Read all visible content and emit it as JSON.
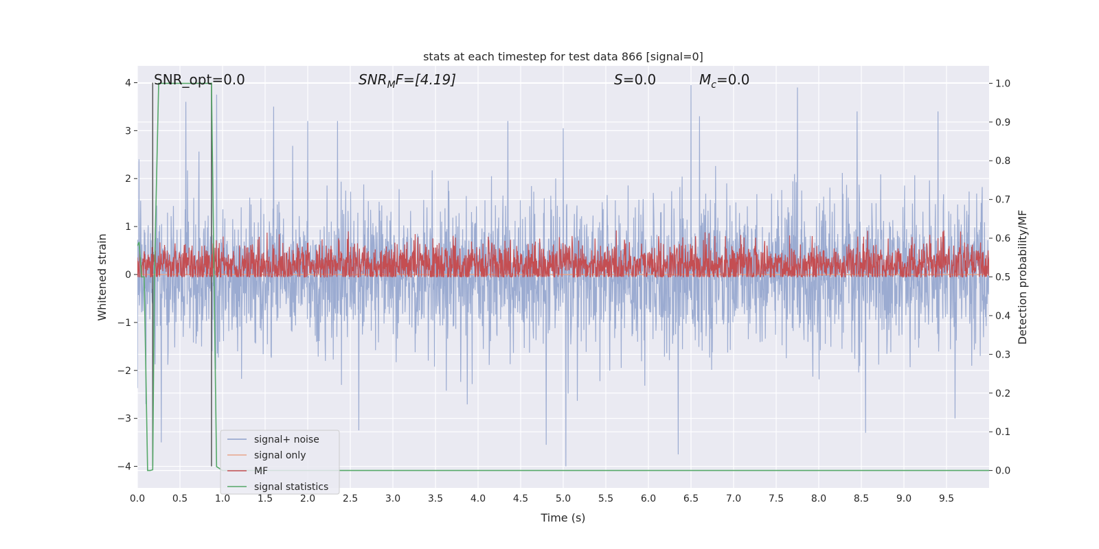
{
  "chart_data": {
    "type": "line",
    "title": "stats at each timestep for test data 866 [signal=0]",
    "xlabel": "Time (s)",
    "ylabel": "Whitened strain",
    "y2label": "Detection probability/MF",
    "xlim": [
      0.0,
      10.0
    ],
    "ylim": [
      -4.45,
      4.35
    ],
    "y2lim": [
      -0.045,
      1.045
    ],
    "xticks": [
      0.0,
      0.5,
      1.0,
      1.5,
      2.0,
      2.5,
      3.0,
      3.5,
      4.0,
      4.5,
      5.0,
      5.5,
      6.0,
      6.5,
      7.0,
      7.5,
      8.0,
      8.5,
      9.0,
      9.5
    ],
    "xtick_labels": [
      "0.0",
      "0.5",
      "1.0",
      "1.5",
      "2.0",
      "2.5",
      "3.0",
      "3.5",
      "4.0",
      "4.5",
      "5.0",
      "5.5",
      "6.0",
      "6.5",
      "7.0",
      "7.5",
      "8.0",
      "8.5",
      "9.0",
      "9.5"
    ],
    "yticks": [
      -4,
      -3,
      -2,
      -1,
      0,
      1,
      2,
      3,
      4
    ],
    "ytick_labels": [
      "−4",
      "−3",
      "−2",
      "−1",
      "0",
      "1",
      "2",
      "3",
      "4"
    ],
    "y2ticks": [
      0.0,
      0.1,
      0.2,
      0.3,
      0.4,
      0.5,
      0.6,
      0.7,
      0.8,
      0.9,
      1.0
    ],
    "y2tick_labels": [
      "0.0",
      "0.1",
      "0.2",
      "0.3",
      "0.4",
      "0.5",
      "0.6",
      "0.7",
      "0.8",
      "0.9",
      "1.0"
    ],
    "grid": true,
    "legend_position": "lower-left",
    "annotations": {
      "snr_opt": "SNR_opt=0.0",
      "snr_mf_base": "SNR",
      "snr_mf_sub": "M",
      "snr_mf_rest": "F=[4.19]",
      "s_italic": "S",
      "s_rest": "=0.0",
      "mc_base": "M",
      "mc_sub": "c",
      "mc_rest": "=0.0"
    },
    "markers_x": [
      0.18,
      0.87
    ],
    "series": [
      {
        "name": "signal+ noise",
        "axis": "left",
        "color": "#8da0cb",
        "kind": "noise",
        "mean": 0.0,
        "std": 0.75,
        "spikes": [
          {
            "x": 0.02,
            "y": 2.4
          },
          {
            "x": 0.57,
            "y": 3.6
          },
          {
            "x": 0.93,
            "y": 3.75
          },
          {
            "x": 1.6,
            "y": 3.5
          },
          {
            "x": 2.0,
            "y": 3.2
          },
          {
            "x": 2.35,
            "y": 3.2
          },
          {
            "x": 4.35,
            "y": 3.2
          },
          {
            "x": 5.0,
            "y": 3.05
          },
          {
            "x": 6.5,
            "y": 3.95
          },
          {
            "x": 6.6,
            "y": 3.3
          },
          {
            "x": 7.75,
            "y": 3.9
          },
          {
            "x": 8.45,
            "y": 3.4
          },
          {
            "x": 9.4,
            "y": 3.4
          },
          {
            "x": 0.28,
            "y": -3.5
          },
          {
            "x": 2.6,
            "y": -3.25
          },
          {
            "x": 4.8,
            "y": -3.55
          },
          {
            "x": 5.03,
            "y": -4.0
          },
          {
            "x": 6.35,
            "y": -3.75
          },
          {
            "x": 8.55,
            "y": -3.3
          },
          {
            "x": 0.1,
            "y": -2.7
          },
          {
            "x": 9.6,
            "y": -3.0
          }
        ]
      },
      {
        "name": "signal only",
        "axis": "left",
        "color": "#e8a58a",
        "kind": "constant",
        "value": 0.0
      },
      {
        "name": "MF",
        "axis": "right",
        "color": "#c44e52",
        "kind": "noise",
        "mean": 0.53,
        "std": 0.03,
        "min": 0.5,
        "max": 0.62
      },
      {
        "name": "signal statistics",
        "axis": "right",
        "color": "#55a868",
        "kind": "line",
        "x": [
          0.0,
          0.02,
          0.05,
          0.08,
          0.12,
          0.15,
          0.18,
          0.2,
          0.25,
          0.87,
          0.9,
          0.93,
          1.0,
          10.0
        ],
        "y": [
          0.58,
          0.59,
          0.5,
          0.5,
          0.0,
          0.0,
          0.002,
          0.5,
          1.0,
          1.0,
          0.5,
          0.01,
          0.0,
          0.0
        ]
      }
    ]
  }
}
